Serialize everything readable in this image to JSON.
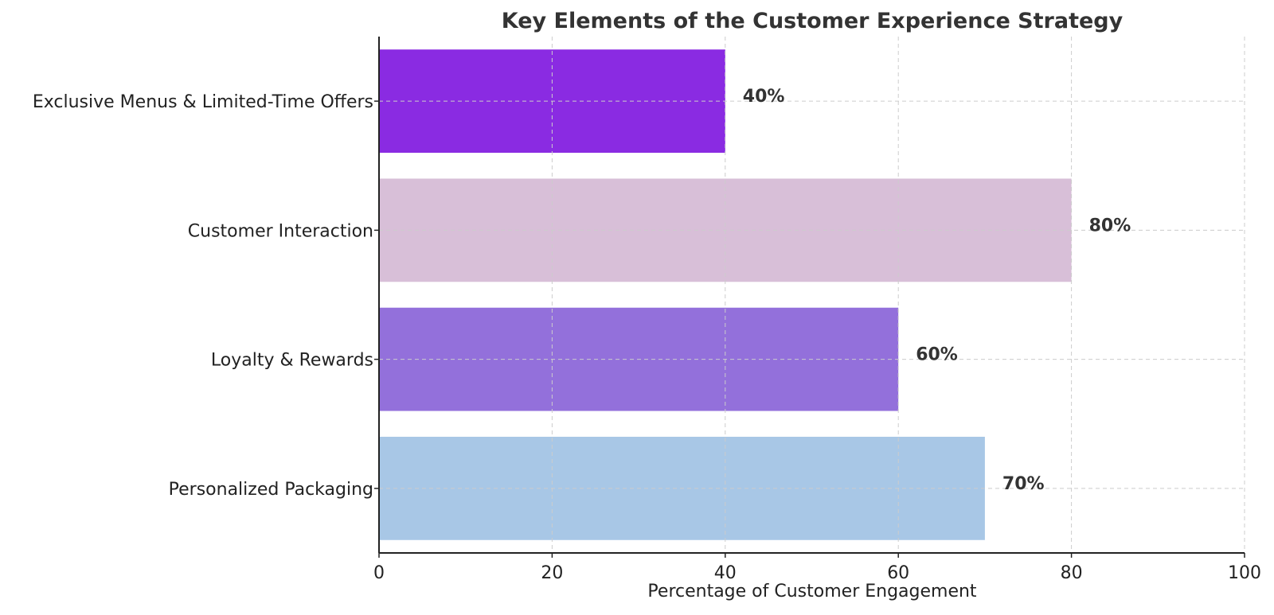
{
  "chart_data": {
    "type": "bar",
    "orientation": "horizontal",
    "title": "Key Elements of the Customer Experience Strategy",
    "xlabel": "Percentage of Customer Engagement",
    "ylabel": "",
    "categories": [
      "Personalized Packaging",
      "Loyalty & Rewards",
      "Customer Interaction",
      "Exclusive Menus & Limited-Time Offers"
    ],
    "values": [
      70,
      60,
      80,
      40
    ],
    "value_labels": [
      "70%",
      "60%",
      "80%",
      "40%"
    ],
    "colors": [
      "#a8c7e6",
      "#9370db",
      "#d8bfd8",
      "#8a2be2"
    ],
    "xlim": [
      0,
      100
    ],
    "xticks": [
      0,
      20,
      40,
      60,
      80,
      100
    ],
    "xtick_labels": [
      "0",
      "20",
      "40",
      "60",
      "80",
      "100"
    ],
    "grid": true,
    "grid_style": "dashed",
    "legend": "none"
  }
}
